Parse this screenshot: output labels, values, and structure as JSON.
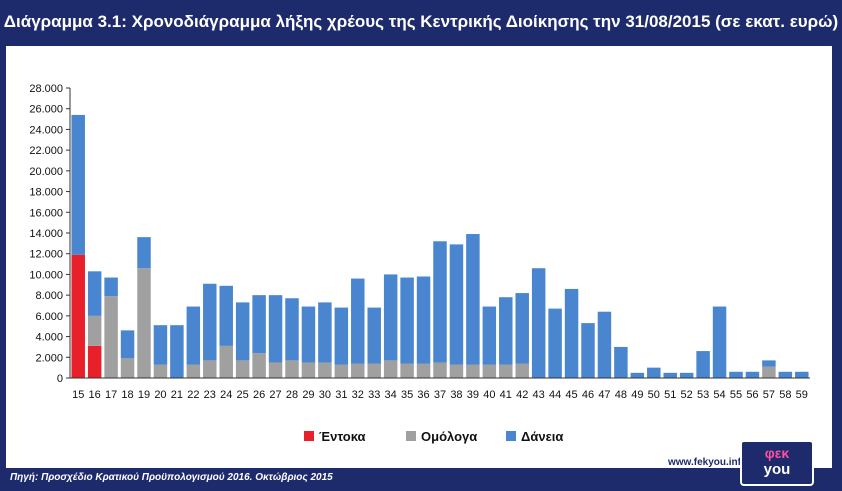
{
  "header": {
    "title": "Διάγραμμα 3.1: Χρονοδιάγραμμα λήξης χρέους της Κεντρικής Διοίκησης την 31/08/2015 (σε εκατ. ευρώ)"
  },
  "footer": {
    "source": "Πηγή: Προσχέδιο Κρατικού Προϋπολογισμού 2016. Οκτώβριος 2015"
  },
  "branding": {
    "site": "www.fekyou.info",
    "logo_top": "φεκ",
    "logo_bottom": "you"
  },
  "colors": {
    "frame": "#1d2a6b",
    "entoka": "#e8202a",
    "omologa": "#a0a0a0",
    "daneia": "#4a86cf"
  },
  "chart_data": {
    "type": "bar",
    "stacked": true,
    "categories": [
      "15",
      "16",
      "17",
      "18",
      "19",
      "20",
      "21",
      "22",
      "23",
      "24",
      "25",
      "26",
      "27",
      "28",
      "29",
      "30",
      "31",
      "32",
      "33",
      "34",
      "35",
      "36",
      "37",
      "38",
      "39",
      "40",
      "41",
      "42",
      "43",
      "44",
      "45",
      "46",
      "47",
      "48",
      "49",
      "50",
      "51",
      "52",
      "53",
      "54",
      "55",
      "56",
      "57",
      "58",
      "59"
    ],
    "y_ticks": [
      "0",
      "2.000",
      "4.000",
      "6.000",
      "8.000",
      "10.000",
      "12.000",
      "14.000",
      "16.000",
      "18.000",
      "20.000",
      "22.000",
      "24.000",
      "26.000",
      "28.000"
    ],
    "ylim": [
      0,
      28000
    ],
    "grid": false,
    "legend_position": "bottom",
    "series": [
      {
        "name": "Έντοκα",
        "color": "#e8202a",
        "values": [
          11900,
          3100,
          0,
          0,
          0,
          0,
          0,
          0,
          0,
          0,
          0,
          0,
          0,
          0,
          0,
          0,
          0,
          0,
          0,
          0,
          0,
          0,
          0,
          0,
          0,
          0,
          0,
          0,
          0,
          0,
          0,
          0,
          0,
          0,
          0,
          0,
          0,
          0,
          0,
          0,
          0,
          0,
          0,
          0,
          0
        ]
      },
      {
        "name": "Ομόλογα",
        "color": "#a0a0a0",
        "values": [
          0,
          2900,
          7900,
          1900,
          10600,
          1300,
          0,
          1300,
          1700,
          3100,
          1700,
          2400,
          1500,
          1700,
          1500,
          1500,
          1300,
          1400,
          1400,
          1700,
          1400,
          1400,
          1500,
          1300,
          1300,
          1300,
          1300,
          1400,
          0,
          0,
          0,
          0,
          0,
          0,
          0,
          0,
          0,
          0,
          0,
          0,
          0,
          0,
          1100,
          0,
          0
        ]
      },
      {
        "name": "Δάνεια",
        "color": "#4a86cf",
        "values": [
          13500,
          4300,
          1800,
          2700,
          3000,
          3800,
          5100,
          5600,
          7400,
          5800,
          5600,
          5600,
          6500,
          6000,
          5400,
          5800,
          5500,
          8200,
          5400,
          8300,
          8300,
          8400,
          11700,
          11600,
          12600,
          5600,
          6500,
          6800,
          10600,
          6700,
          8600,
          5300,
          6400,
          3000,
          500,
          1000,
          500,
          500,
          2600,
          6900,
          600,
          600,
          600,
          600,
          600
        ]
      }
    ]
  }
}
